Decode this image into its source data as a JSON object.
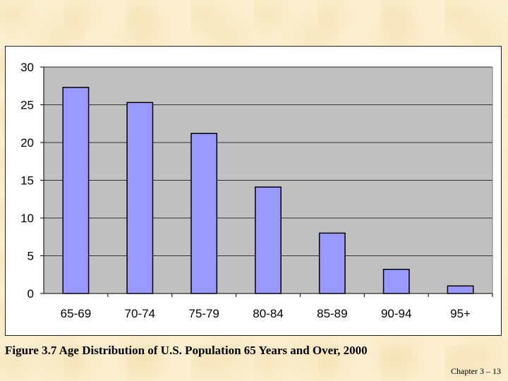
{
  "chart_data": {
    "type": "bar",
    "title": "",
    "xlabel": "",
    "ylabel": "",
    "categories": [
      "65-69",
      "70-74",
      "75-79",
      "80-84",
      "85-89",
      "90-94",
      "95+"
    ],
    "values": [
      27.3,
      25.3,
      21.2,
      14.1,
      8.0,
      3.2,
      1.0
    ],
    "ylim": [
      0,
      30
    ],
    "yticks": [
      0,
      5,
      10,
      15,
      20,
      25,
      30
    ],
    "grid": true,
    "legend": "none",
    "colors": {
      "bar_fill": "#9999ff",
      "bar_stroke": "#000000",
      "plot_background": "#c0c0c0",
      "gridline": "#000000"
    }
  },
  "caption": "Figure 3.7 Age Distribution of U.S. Population 65 Years and Over, 2000",
  "footer": "Chapter 3 – 13"
}
